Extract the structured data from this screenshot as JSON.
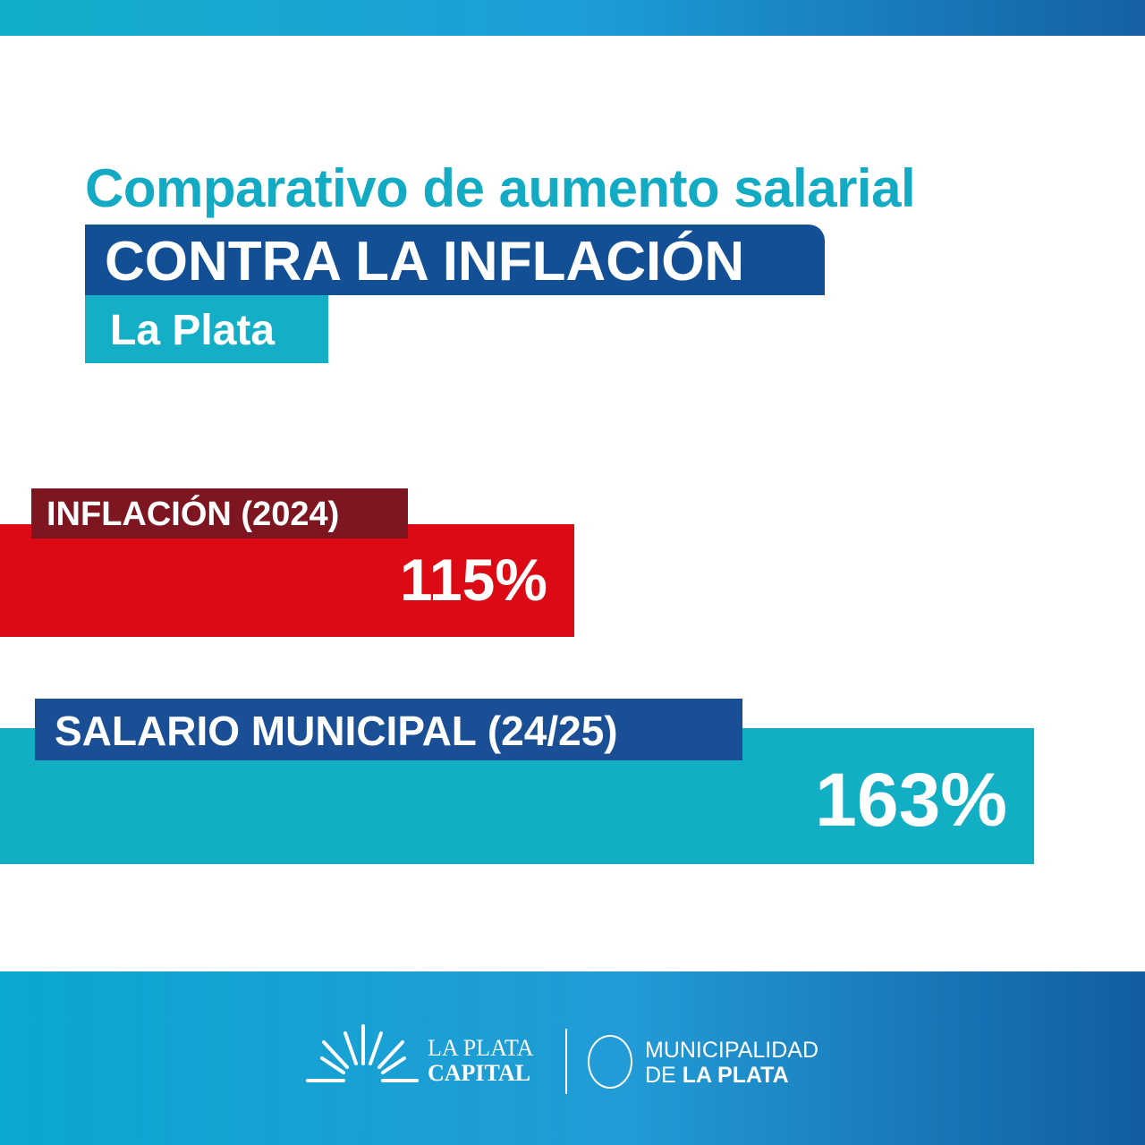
{
  "header": {
    "title": "Comparativo de aumento salarial",
    "subtitle": "CONTRA LA INFLACIÓN",
    "location": "La Plata"
  },
  "chart_data": {
    "type": "bar",
    "orientation": "horizontal",
    "categories": [
      "INFLACIÓN (2024)",
      "SALARIO MUNICIPAL (24/25)"
    ],
    "values": [
      115,
      163
    ],
    "value_labels": [
      "115%",
      "163%"
    ],
    "colors": [
      "#dc0a14",
      "#12aec4"
    ],
    "title": "Comparativo de aumento salarial CONTRA LA INFLACIÓN",
    "xlabel": "",
    "ylabel": ""
  },
  "footer": {
    "brand1_line1": "LA PLATA",
    "brand1_line2": "CAPITAL",
    "brand2_line1": "MUNICIPALIDAD",
    "brand2_line2a": "DE ",
    "brand2_line2b": "LA PLATA"
  }
}
